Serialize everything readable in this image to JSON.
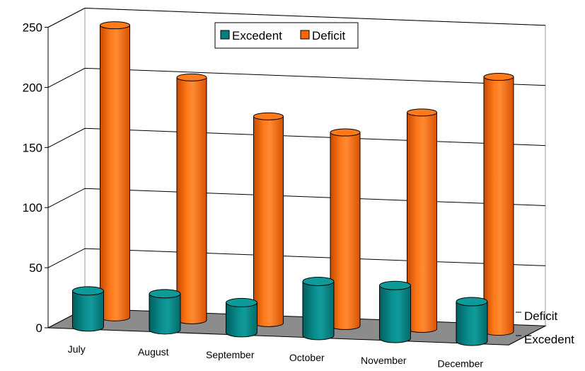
{
  "chart_data": {
    "type": "bar",
    "subtype": "3d-cylinder",
    "categories": [
      "July",
      "August",
      "September",
      "October",
      "November",
      "December"
    ],
    "series": [
      {
        "name": "Excedent",
        "values": [
          30,
          30,
          25,
          45,
          44,
          33
        ],
        "color": "#008080"
      },
      {
        "name": "Deficit",
        "values": [
          243,
          202,
          172,
          161,
          180,
          212
        ],
        "color": "#ff6600"
      }
    ],
    "depth_labels": [
      "Deficit",
      "Excedent"
    ],
    "yticks": [
      "0",
      "50",
      "100",
      "150",
      "200",
      "250"
    ],
    "ylim": [
      0,
      250
    ],
    "grid": true,
    "legend": "top-center"
  }
}
